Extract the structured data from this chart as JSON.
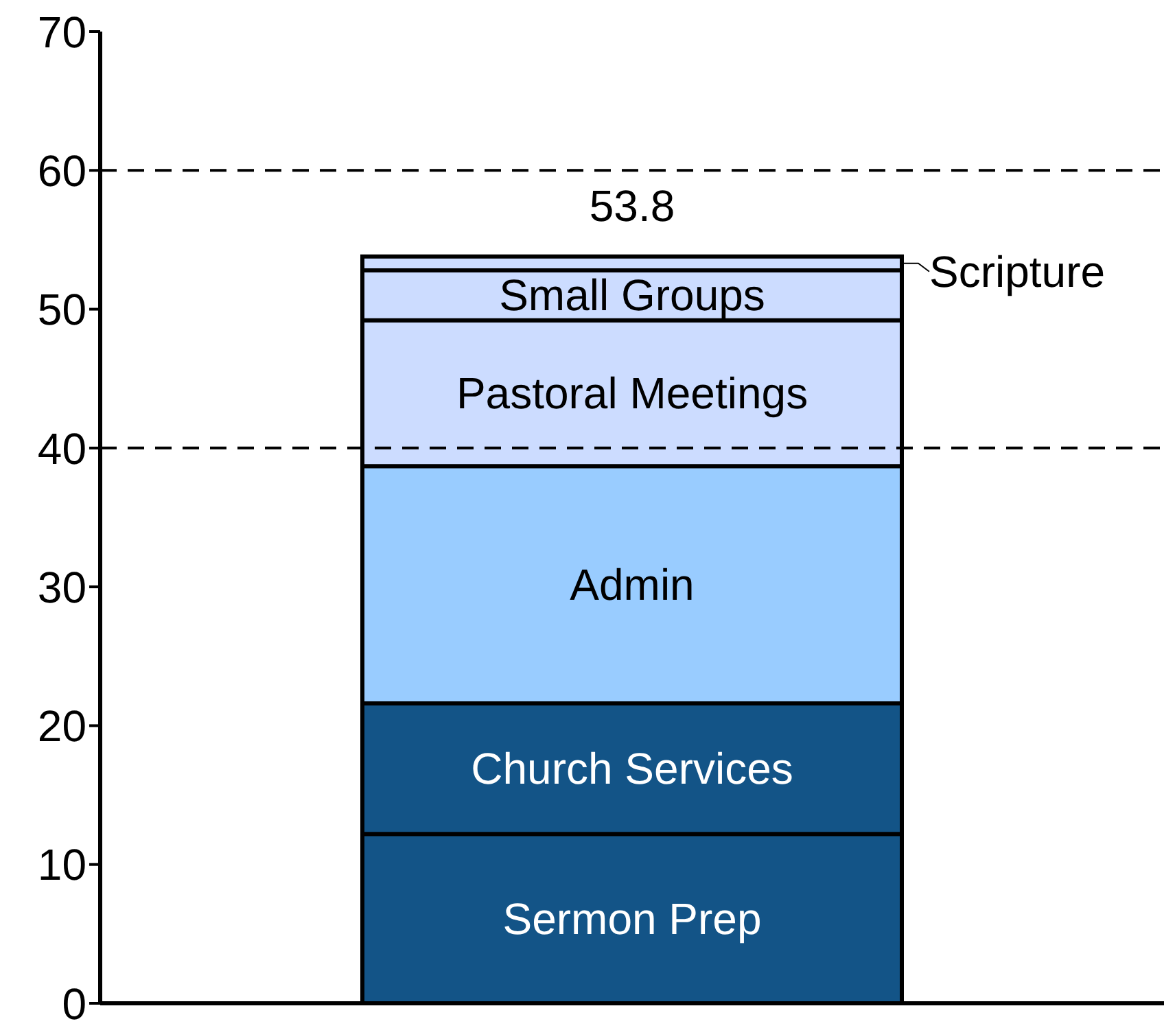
{
  "chart_data": {
    "type": "bar",
    "stacked": true,
    "categories": [
      null
    ],
    "series": [
      {
        "name": "Sermon Prep",
        "color": "#135487",
        "values": [
          12.2
        ]
      },
      {
        "name": "Church Services",
        "color": "#135487",
        "values": [
          9.4
        ]
      },
      {
        "name": "Admin",
        "color": "#99ccff",
        "values": [
          17.1
        ]
      },
      {
        "name": "Pastoral Meetings",
        "color": "#ccdcff",
        "values": [
          10.5
        ]
      },
      {
        "name": "Small Groups",
        "color": "#ccdcff",
        "values": [
          3.6
        ]
      },
      {
        "name": "Scripture",
        "color": "#ccdcff",
        "values": [
          1.0
        ]
      }
    ],
    "totals": [
      "53.8"
    ],
    "ylim": [
      0,
      70
    ],
    "yticks": [
      0,
      10,
      20,
      30,
      40,
      50,
      60,
      70
    ],
    "grid": false,
    "ref_lines": [
      {
        "axis": "y",
        "value": 40,
        "color": "#000000",
        "line_style": "dashed"
      },
      {
        "axis": "y",
        "value": 60,
        "color": "#000000",
        "line_style": "dashed"
      }
    ]
  }
}
